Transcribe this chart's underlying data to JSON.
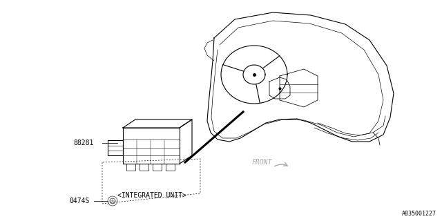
{
  "bg_color": "#ffffff",
  "line_color": "#000000",
  "gray_color": "#aaaaaa",
  "lw": 0.8,
  "lw_thick": 2.2,
  "part_number_88281": "88281",
  "part_number_0474S": "0474S",
  "label_integrated": "<INTEGRATED UNIT>",
  "label_front": "FRONT",
  "ref_code": "A835001227",
  "font_size_label": 7,
  "font_size_ref": 6
}
